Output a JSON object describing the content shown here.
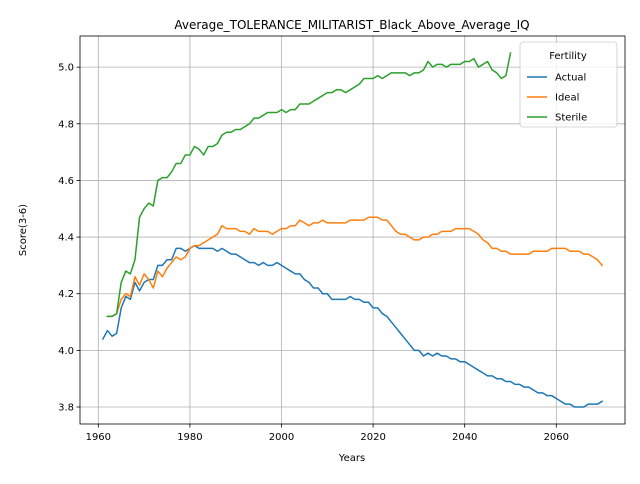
{
  "chart_data": {
    "type": "line",
    "title": "Average_TOLERANCE_MILITARIST_Black_Above_Average_IQ",
    "xlabel": "Years",
    "ylabel": "Score(3-6)",
    "xlim": [
      1956,
      2075
    ],
    "ylim": [
      3.74,
      5.11
    ],
    "xticks": [
      1960,
      1980,
      2000,
      2020,
      2040,
      2060
    ],
    "yticks": [
      3.8,
      4.0,
      4.2,
      4.4,
      4.6,
      4.8,
      5.0
    ],
    "xtick_labels": [
      "1960",
      "1980",
      "2000",
      "2020",
      "2040",
      "2060"
    ],
    "ytick_labels": [
      "3.8",
      "4.0",
      "4.2",
      "4.4",
      "4.6",
      "4.8",
      "5.0"
    ],
    "grid": true,
    "legend": {
      "title": "Fertility",
      "position": "top-right"
    },
    "series": [
      {
        "name": "Actual",
        "color": "#1f77b4",
        "x": [
          1961,
          1962,
          1963,
          1964,
          1965,
          1966,
          1967,
          1968,
          1969,
          1970,
          1971,
          1972,
          1973,
          1974,
          1975,
          1976,
          1977,
          1978,
          1979,
          1980,
          1981,
          1982,
          1983,
          1984,
          1985,
          1986,
          1987,
          1988,
          1989,
          1990,
          1991,
          1992,
          1993,
          1994,
          1995,
          1996,
          1997,
          1998,
          1999,
          2000,
          2001,
          2002,
          2003,
          2004,
          2005,
          2006,
          2007,
          2008,
          2009,
          2010,
          2011,
          2012,
          2013,
          2014,
          2015,
          2016,
          2017,
          2018,
          2019,
          2020,
          2021,
          2022,
          2023,
          2024,
          2025,
          2026,
          2027,
          2028,
          2029,
          2030,
          2031,
          2032,
          2033,
          2034,
          2035,
          2036,
          2037,
          2038,
          2039,
          2040,
          2041,
          2042,
          2043,
          2044,
          2045,
          2046,
          2047,
          2048,
          2049,
          2050,
          2051,
          2052,
          2053,
          2054,
          2055,
          2056,
          2057,
          2058,
          2059,
          2060,
          2061,
          2062,
          2063,
          2064,
          2065,
          2066,
          2067,
          2068,
          2069,
          2070
        ],
        "y": [
          4.04,
          4.07,
          4.05,
          4.06,
          4.15,
          4.19,
          4.18,
          4.24,
          4.21,
          4.24,
          4.25,
          4.25,
          4.3,
          4.3,
          4.32,
          4.32,
          4.36,
          4.36,
          4.35,
          4.36,
          4.37,
          4.36,
          4.36,
          4.36,
          4.36,
          4.35,
          4.36,
          4.35,
          4.34,
          4.34,
          4.33,
          4.32,
          4.31,
          4.31,
          4.3,
          4.31,
          4.3,
          4.3,
          4.31,
          4.3,
          4.29,
          4.28,
          4.27,
          4.27,
          4.25,
          4.24,
          4.22,
          4.22,
          4.2,
          4.2,
          4.18,
          4.18,
          4.18,
          4.18,
          4.19,
          4.18,
          4.18,
          4.17,
          4.17,
          4.15,
          4.15,
          4.13,
          4.12,
          4.1,
          4.08,
          4.06,
          4.04,
          4.02,
          4.0,
          4.0,
          3.98,
          3.99,
          3.98,
          3.99,
          3.98,
          3.98,
          3.97,
          3.97,
          3.96,
          3.96,
          3.95,
          3.94,
          3.93,
          3.92,
          3.91,
          3.91,
          3.9,
          3.9,
          3.89,
          3.89,
          3.88,
          3.88,
          3.87,
          3.87,
          3.86,
          3.85,
          3.85,
          3.84,
          3.84,
          3.83,
          3.82,
          3.81,
          3.81,
          3.8,
          3.8,
          3.8,
          3.81,
          3.81,
          3.81,
          3.82
        ]
      },
      {
        "name": "Ideal",
        "color": "#ff7f0e",
        "x": [
          1962,
          1963,
          1964,
          1965,
          1966,
          1967,
          1968,
          1969,
          1970,
          1971,
          1972,
          1973,
          1974,
          1975,
          1976,
          1977,
          1978,
          1979,
          1980,
          1981,
          1982,
          1983,
          1984,
          1985,
          1986,
          1987,
          1988,
          1989,
          1990,
          1991,
          1992,
          1993,
          1994,
          1995,
          1996,
          1997,
          1998,
          1999,
          2000,
          2001,
          2002,
          2003,
          2004,
          2005,
          2006,
          2007,
          2008,
          2009,
          2010,
          2011,
          2012,
          2013,
          2014,
          2015,
          2016,
          2017,
          2018,
          2019,
          2020,
          2021,
          2022,
          2023,
          2024,
          2025,
          2026,
          2027,
          2028,
          2029,
          2030,
          2031,
          2032,
          2033,
          2034,
          2035,
          2036,
          2037,
          2038,
          2039,
          2040,
          2041,
          2042,
          2043,
          2044,
          2045,
          2046,
          2047,
          2048,
          2049,
          2050,
          2051,
          2052,
          2053,
          2054,
          2055,
          2056,
          2057,
          2058,
          2059,
          2060,
          2061,
          2062,
          2063,
          2064,
          2065,
          2066,
          2067,
          2068,
          2069,
          2070
        ],
        "y": [
          4.12,
          4.12,
          4.13,
          4.18,
          4.2,
          4.19,
          4.26,
          4.23,
          4.27,
          4.25,
          4.22,
          4.28,
          4.26,
          4.29,
          4.31,
          4.33,
          4.32,
          4.33,
          4.36,
          4.37,
          4.37,
          4.38,
          4.39,
          4.4,
          4.41,
          4.44,
          4.43,
          4.43,
          4.43,
          4.42,
          4.42,
          4.41,
          4.43,
          4.42,
          4.42,
          4.42,
          4.41,
          4.42,
          4.43,
          4.43,
          4.44,
          4.44,
          4.46,
          4.45,
          4.44,
          4.45,
          4.45,
          4.46,
          4.45,
          4.45,
          4.45,
          4.45,
          4.45,
          4.46,
          4.46,
          4.46,
          4.46,
          4.47,
          4.47,
          4.47,
          4.46,
          4.46,
          4.44,
          4.42,
          4.41,
          4.41,
          4.4,
          4.39,
          4.39,
          4.4,
          4.4,
          4.41,
          4.41,
          4.42,
          4.42,
          4.42,
          4.43,
          4.43,
          4.43,
          4.43,
          4.42,
          4.41,
          4.39,
          4.38,
          4.36,
          4.36,
          4.35,
          4.35,
          4.34,
          4.34,
          4.34,
          4.34,
          4.34,
          4.35,
          4.35,
          4.35,
          4.35,
          4.36,
          4.36,
          4.36,
          4.36,
          4.35,
          4.35,
          4.35,
          4.34,
          4.34,
          4.33,
          4.32,
          4.3
        ]
      },
      {
        "name": "Sterile",
        "color": "#2ca02c",
        "x": [
          1962,
          1963,
          1964,
          1965,
          1966,
          1967,
          1968,
          1969,
          1970,
          1971,
          1972,
          1973,
          1974,
          1975,
          1976,
          1977,
          1978,
          1979,
          1980,
          1981,
          1982,
          1983,
          1984,
          1985,
          1986,
          1987,
          1988,
          1989,
          1990,
          1991,
          1992,
          1993,
          1994,
          1995,
          1996,
          1997,
          1998,
          1999,
          2000,
          2001,
          2002,
          2003,
          2004,
          2005,
          2006,
          2007,
          2008,
          2009,
          2010,
          2011,
          2012,
          2013,
          2014,
          2015,
          2016,
          2017,
          2018,
          2019,
          2020,
          2021,
          2022,
          2023,
          2024,
          2025,
          2026,
          2027,
          2028,
          2029,
          2030,
          2031,
          2032,
          2033,
          2034,
          2035,
          2036,
          2037,
          2038,
          2039,
          2040,
          2041,
          2042,
          2043,
          2044,
          2045,
          2046,
          2047,
          2048,
          2049,
          2050
        ],
        "y": [
          4.12,
          4.12,
          4.13,
          4.24,
          4.28,
          4.27,
          4.32,
          4.47,
          4.5,
          4.52,
          4.51,
          4.6,
          4.61,
          4.61,
          4.63,
          4.66,
          4.66,
          4.69,
          4.69,
          4.72,
          4.71,
          4.69,
          4.72,
          4.72,
          4.73,
          4.76,
          4.77,
          4.77,
          4.78,
          4.78,
          4.79,
          4.8,
          4.82,
          4.82,
          4.83,
          4.84,
          4.84,
          4.84,
          4.85,
          4.84,
          4.85,
          4.85,
          4.87,
          4.87,
          4.87,
          4.88,
          4.89,
          4.9,
          4.91,
          4.91,
          4.92,
          4.92,
          4.91,
          4.92,
          4.93,
          4.94,
          4.96,
          4.96,
          4.96,
          4.97,
          4.96,
          4.97,
          4.98,
          4.98,
          4.98,
          4.98,
          4.97,
          4.98,
          4.98,
          4.99,
          5.02,
          5.0,
          5.01,
          5.01,
          5.0,
          5.01,
          5.01,
          5.01,
          5.02,
          5.02,
          5.03,
          5.0,
          5.01,
          5.02,
          4.99,
          4.98,
          4.96,
          4.97,
          5.05
        ]
      }
    ]
  }
}
